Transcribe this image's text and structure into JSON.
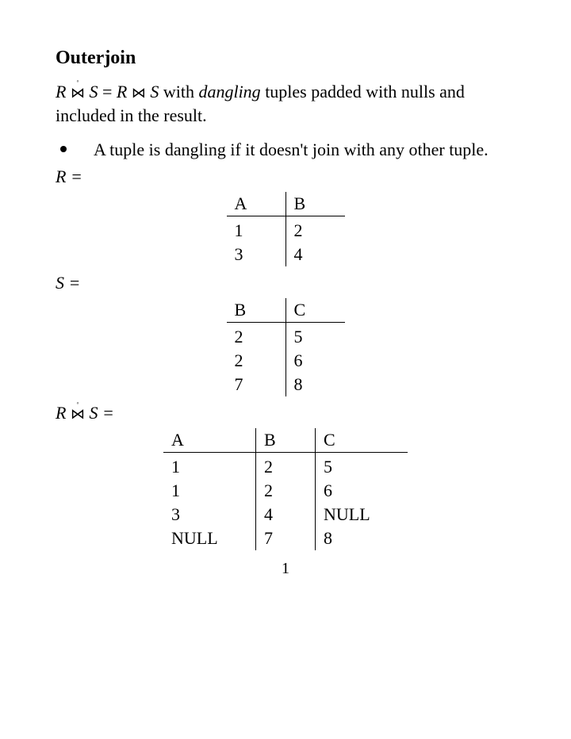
{
  "title": "Outerjoin",
  "def_prefix": "R ",
  "def_mid": " S = R ",
  "def_suffix": " S with ",
  "def_italic": "dangling",
  "def_tail": " tuples padded with nulls and included in the result.",
  "bullet": "A tuple is dangling if it doesn't join with any other tuple.",
  "labels": {
    "R": "R =",
    "S": "S =",
    "RS_pre": "R ",
    "RS_post": " S ="
  },
  "tableR": {
    "columns": [
      "A",
      "B"
    ],
    "rows": [
      [
        "1",
        "2"
      ],
      [
        "3",
        "4"
      ]
    ],
    "col_widths": [
      "narrow",
      "narrow"
    ]
  },
  "tableS": {
    "columns": [
      "B",
      "C"
    ],
    "rows": [
      [
        "2",
        "5"
      ],
      [
        "2",
        "6"
      ],
      [
        "7",
        "8"
      ]
    ],
    "col_widths": [
      "narrow",
      "narrow"
    ]
  },
  "tableRS": {
    "columns": [
      "A",
      "B",
      "C"
    ],
    "rows": [
      [
        "1",
        "2",
        "5"
      ],
      [
        "1",
        "2",
        "6"
      ],
      [
        "3",
        "4",
        "NULL"
      ],
      [
        "NULL",
        "7",
        "8"
      ]
    ],
    "col_widths": [
      "wide",
      "narrow",
      "wide"
    ]
  },
  "page_number": "1",
  "symbols": {
    "outer_join": "⋈",
    "ring": "◦",
    "natural_join": "⋈"
  }
}
